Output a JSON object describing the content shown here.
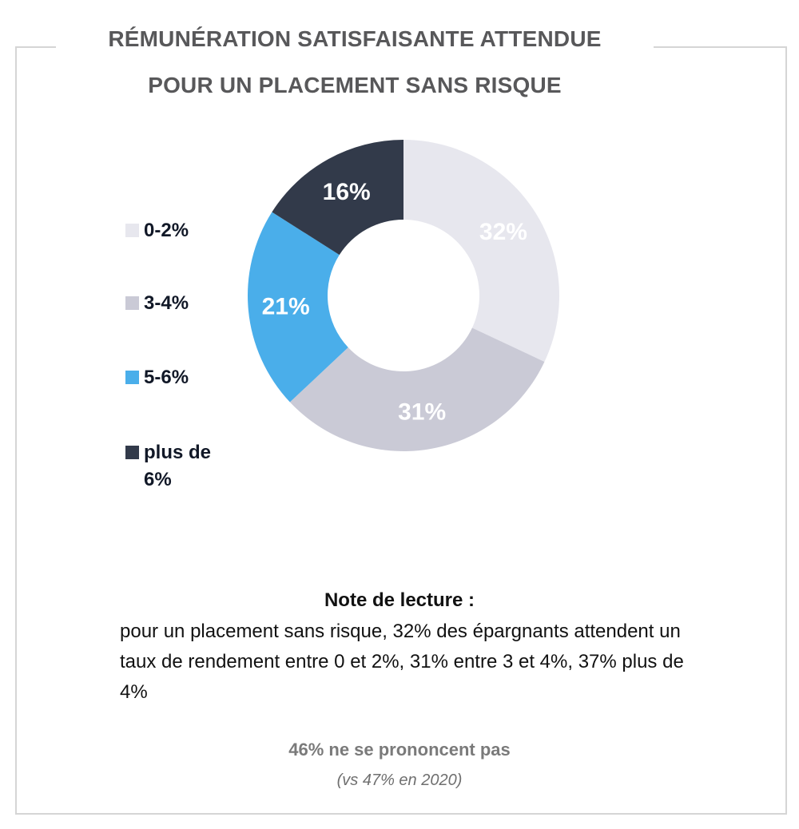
{
  "title": {
    "line1": "Rémunération satisfaisante attendue",
    "line2": "pour un placement sans risque"
  },
  "chart_data": {
    "type": "pie",
    "variant": "donut",
    "title": "Rémunération satisfaisante attendue pour un placement sans risque",
    "categories": [
      "0-2%",
      "3-4%",
      "5-6%",
      "plus de 6%"
    ],
    "values": [
      32,
      31,
      21,
      16
    ],
    "labels": [
      "32%",
      "31%",
      "21%",
      "16%"
    ],
    "colors": [
      "#e7e7ee",
      "#cacad6",
      "#4aaeea",
      "#323a4a"
    ],
    "label_colors": [
      "#ffffff",
      "#ffffff",
      "#ffffff",
      "#ffffff"
    ],
    "legend_position": "left"
  },
  "legend": {
    "items": [
      {
        "label": "0-2%",
        "color": "#e7e7ee"
      },
      {
        "label": "3-4%",
        "color": "#cacad6"
      },
      {
        "label": "5-6%",
        "color": "#4aaeea"
      },
      {
        "label": "plus de 6%",
        "color": "#323a4a"
      }
    ]
  },
  "note": {
    "title": "Note de lecture :",
    "text": "pour un placement sans risque, 32% des épargnants attendent un taux de rendement entre 0 et 2%, 31% entre 3 et 4%, 37% plus de 4%"
  },
  "no_opinion": "46% ne se prononcent pas",
  "comparison": "(vs 47% en 2020)"
}
